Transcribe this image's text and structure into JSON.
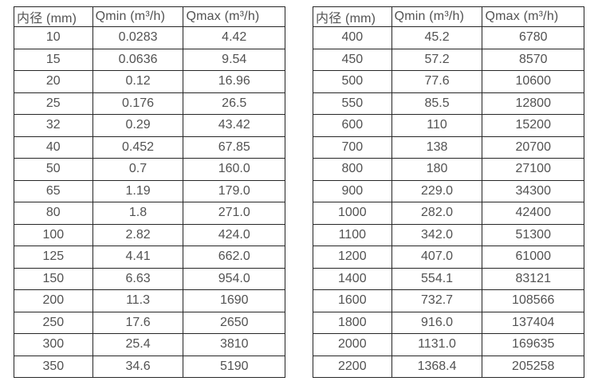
{
  "colors": {
    "background": "#ffffff",
    "border": "#262626",
    "text": "#525252"
  },
  "tables": {
    "left": {
      "name": "flow-rate-table-small-diameters",
      "headers": [
        "内径 (mm)",
        "Qmin (m³/h)",
        "Qmax (m³/h)"
      ],
      "rows": [
        [
          "10",
          "0.0283",
          "4.42"
        ],
        [
          "15",
          "0.0636",
          "9.54"
        ],
        [
          "20",
          "0.12",
          "16.96"
        ],
        [
          "25",
          "0.176",
          "26.5"
        ],
        [
          "32",
          "0.29",
          "43.42"
        ],
        [
          "40",
          "0.452",
          "67.85"
        ],
        [
          "50",
          "0.7",
          "160.0"
        ],
        [
          "65",
          "1.19",
          "179.0"
        ],
        [
          "80",
          "1.8",
          "271.0"
        ],
        [
          "100",
          "2.82",
          "424.0"
        ],
        [
          "125",
          "4.41",
          "662.0"
        ],
        [
          "150",
          "6.63",
          "954.0"
        ],
        [
          "200",
          "11.3",
          "1690"
        ],
        [
          "250",
          "17.6",
          "2650"
        ],
        [
          "300",
          "25.4",
          "3810"
        ],
        [
          "350",
          "34.6",
          "5190"
        ]
      ]
    },
    "right": {
      "name": "flow-rate-table-large-diameters",
      "headers": [
        "内径 (mm)",
        "Qmin (m³/h)",
        "Qmax (m³/h)"
      ],
      "rows": [
        [
          "400",
          "45.2",
          "6780"
        ],
        [
          "450",
          "57.2",
          "8570"
        ],
        [
          "500",
          "77.6",
          "10600"
        ],
        [
          "550",
          "85.5",
          "12800"
        ],
        [
          "600",
          "110",
          "15200"
        ],
        [
          "700",
          "138",
          "20700"
        ],
        [
          "800",
          "180",
          "27100"
        ],
        [
          "900",
          "229.0",
          "34300"
        ],
        [
          "1000",
          "282.0",
          "42400"
        ],
        [
          "1100",
          "342.0",
          "51300"
        ],
        [
          "1200",
          "407.0",
          "61000"
        ],
        [
          "1400",
          "554.1",
          "83121"
        ],
        [
          "1600",
          "732.7",
          "108566"
        ],
        [
          "1800",
          "916.0",
          "137404"
        ],
        [
          "2000",
          "1131.0",
          "169635"
        ],
        [
          "2200",
          "1368.4",
          "205258"
        ]
      ]
    }
  }
}
